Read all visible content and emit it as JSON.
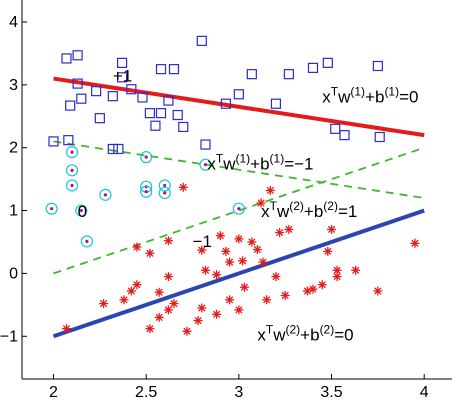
{
  "chart_data": {
    "type": "scatter",
    "title": "",
    "xlabel": "",
    "ylabel": "",
    "xlim": [
      1.83,
      4.15
    ],
    "ylim": [
      -1.68,
      4.35
    ],
    "xticks": [
      2,
      2.5,
      3,
      3.5,
      4
    ],
    "xtick_labels": [
      "2",
      "2.5",
      "3",
      "3.5",
      "4"
    ],
    "yticks": [
      -1,
      0,
      1,
      2,
      3,
      4
    ],
    "ytick_labels": [
      "−1",
      "0",
      "1",
      "2",
      "3",
      "4"
    ],
    "grid": false,
    "legend": "none",
    "colors": {
      "class_pos": "#2b2bd0",
      "class_neg": "#e41b1b",
      "class_zero_ring": "#18c4d8",
      "class_zero_dot": "#b0117f",
      "line_red": "#e41b1b",
      "line_blue": "#2b46b3",
      "line_dashed": "#3fb82d"
    },
    "series": [
      {
        "marker": "square",
        "points": [
          [
            2.07,
            3.42
          ],
          [
            2.13,
            3.47
          ],
          [
            2.09,
            2.67
          ],
          [
            2.15,
            2.78
          ],
          [
            2.13,
            3.02
          ],
          [
            2.23,
            2.9
          ],
          [
            2.25,
            2.47
          ],
          [
            2.32,
            2.82
          ],
          [
            2.37,
            3.12
          ],
          [
            2.37,
            3.35
          ],
          [
            2.42,
            2.93
          ],
          [
            2.48,
            2.8
          ],
          [
            2.52,
            2.55
          ],
          [
            2.55,
            2.35
          ],
          [
            2.58,
            2.55
          ],
          [
            2.58,
            3.25
          ],
          [
            2.62,
            2.75
          ],
          [
            2.65,
            3.25
          ],
          [
            2.67,
            2.52
          ],
          [
            2.7,
            2.33
          ],
          [
            2.8,
            3.7
          ],
          [
            2.82,
            2.05
          ],
          [
            2.93,
            2.7
          ],
          [
            3.0,
            2.85
          ],
          [
            3.07,
            3.17
          ],
          [
            3.2,
            2.7
          ],
          [
            3.27,
            3.17
          ],
          [
            3.4,
            3.27
          ],
          [
            3.48,
            3.35
          ],
          [
            3.52,
            2.3
          ],
          [
            3.57,
            2.2
          ],
          [
            3.75,
            3.3
          ],
          [
            3.76,
            2.17
          ],
          [
            2.32,
            1.98
          ],
          [
            2.35,
            1.98
          ],
          [
            2.08,
            2.12
          ],
          [
            2.0,
            2.1
          ]
        ]
      },
      {
        "marker": "circle-dot",
        "points": [
          [
            2.1,
            1.93
          ],
          [
            2.1,
            1.64
          ],
          [
            2.1,
            1.4
          ],
          [
            1.99,
            1.03
          ],
          [
            2.15,
            1.0
          ],
          [
            2.28,
            1.25
          ],
          [
            2.5,
            1.85
          ],
          [
            2.5,
            1.38
          ],
          [
            2.5,
            1.3
          ],
          [
            2.6,
            1.4
          ],
          [
            2.6,
            1.28
          ],
          [
            2.18,
            0.51
          ],
          [
            2.82,
            1.73
          ],
          [
            3.0,
            1.03
          ]
        ]
      },
      {
        "marker": "asterisk",
        "points": [
          [
            2.07,
            -0.88
          ],
          [
            2.27,
            -0.48
          ],
          [
            2.38,
            -0.42
          ],
          [
            2.42,
            -0.28
          ],
          [
            2.45,
            -0.18
          ],
          [
            2.45,
            0.42
          ],
          [
            2.52,
            -0.88
          ],
          [
            2.52,
            0.32
          ],
          [
            2.57,
            -0.7
          ],
          [
            2.57,
            -0.3
          ],
          [
            2.62,
            -0.05
          ],
          [
            2.62,
            -0.58
          ],
          [
            2.65,
            -0.48
          ],
          [
            2.62,
            0.52
          ],
          [
            2.7,
            1.37
          ],
          [
            2.72,
            -0.92
          ],
          [
            2.78,
            -0.75
          ],
          [
            2.8,
            -0.55
          ],
          [
            2.8,
            0.37
          ],
          [
            2.82,
            0.05
          ],
          [
            2.88,
            -0.65
          ],
          [
            2.88,
            -0.02
          ],
          [
            2.9,
            0.6
          ],
          [
            2.93,
            0.35
          ],
          [
            2.95,
            0.18
          ],
          [
            3.0,
            -0.58
          ],
          [
            3.02,
            0.2
          ],
          [
            3.0,
            0.55
          ],
          [
            3.07,
            0.5
          ],
          [
            3.1,
            0.38
          ],
          [
            3.12,
            1.12
          ],
          [
            3.13,
            0.18
          ],
          [
            3.15,
            -0.42
          ],
          [
            3.17,
            1.32
          ],
          [
            3.2,
            -0.05
          ],
          [
            3.22,
            0.65
          ],
          [
            3.25,
            -0.35
          ],
          [
            3.27,
            0.7
          ],
          [
            3.37,
            -0.28
          ],
          [
            3.4,
            -0.25
          ],
          [
            3.45,
            -0.18
          ],
          [
            3.48,
            0.35
          ],
          [
            3.53,
            -0.05
          ],
          [
            3.53,
            0.05
          ],
          [
            3.5,
            0.7
          ],
          [
            3.63,
            0.05
          ],
          [
            3.75,
            -0.28
          ],
          [
            3.95,
            0.48
          ],
          [
            3.03,
            -0.22
          ],
          [
            2.95,
            -0.42
          ]
        ]
      }
    ],
    "lines": [
      {
        "style": "solid",
        "color": "line_red",
        "x": [
          2.0,
          4.0
        ],
        "y": [
          3.1,
          2.2
        ]
      },
      {
        "style": "solid",
        "color": "line_blue",
        "x": [
          2.0,
          4.0
        ],
        "y": [
          -1.0,
          1.0
        ]
      },
      {
        "style": "dashed",
        "color": "line_dashed",
        "x": [
          2.0,
          4.0
        ],
        "y": [
          2.1,
          1.2
        ]
      },
      {
        "style": "dashed",
        "color": "line_dashed",
        "x": [
          2.0,
          4.0
        ],
        "y": [
          0.0,
          2.0
        ]
      }
    ],
    "annotations": [
      {
        "id": "plus1",
        "text": "+1",
        "x": 2.32,
        "y": 3.05
      },
      {
        "id": "zero",
        "text": "0",
        "x": 2.13,
        "y": 0.9
      },
      {
        "id": "minus1",
        "text": "−1",
        "x": 2.75,
        "y": 0.42
      },
      {
        "id": "eq_red",
        "base": "x",
        "sup1": "T",
        "mid1": "w",
        "sup2": "(1)",
        "mid2": "+b",
        "sup3": "(1)",
        "end": "=0",
        "x": 3.45,
        "y": 2.72
      },
      {
        "id": "eq_dash1",
        "base": "x",
        "sup1": "T",
        "mid1": "w",
        "sup2": "(1)",
        "mid2": "+b",
        "sup3": "(1)",
        "end": "=−1",
        "x": 2.83,
        "y": 1.65
      },
      {
        "id": "eq_dash2",
        "base": "x",
        "sup1": "T",
        "mid1": "w",
        "sup2": "(2)",
        "mid2": "+b",
        "sup3": "(2)",
        "end": "=1",
        "x": 3.12,
        "y": 0.9
      },
      {
        "id": "eq_blue",
        "base": "x",
        "sup1": "T",
        "mid1": "w",
        "sup2": "(2)",
        "mid2": "+b",
        "sup3": "(2)",
        "end": "=0",
        "x": 3.1,
        "y": -1.07
      }
    ]
  }
}
